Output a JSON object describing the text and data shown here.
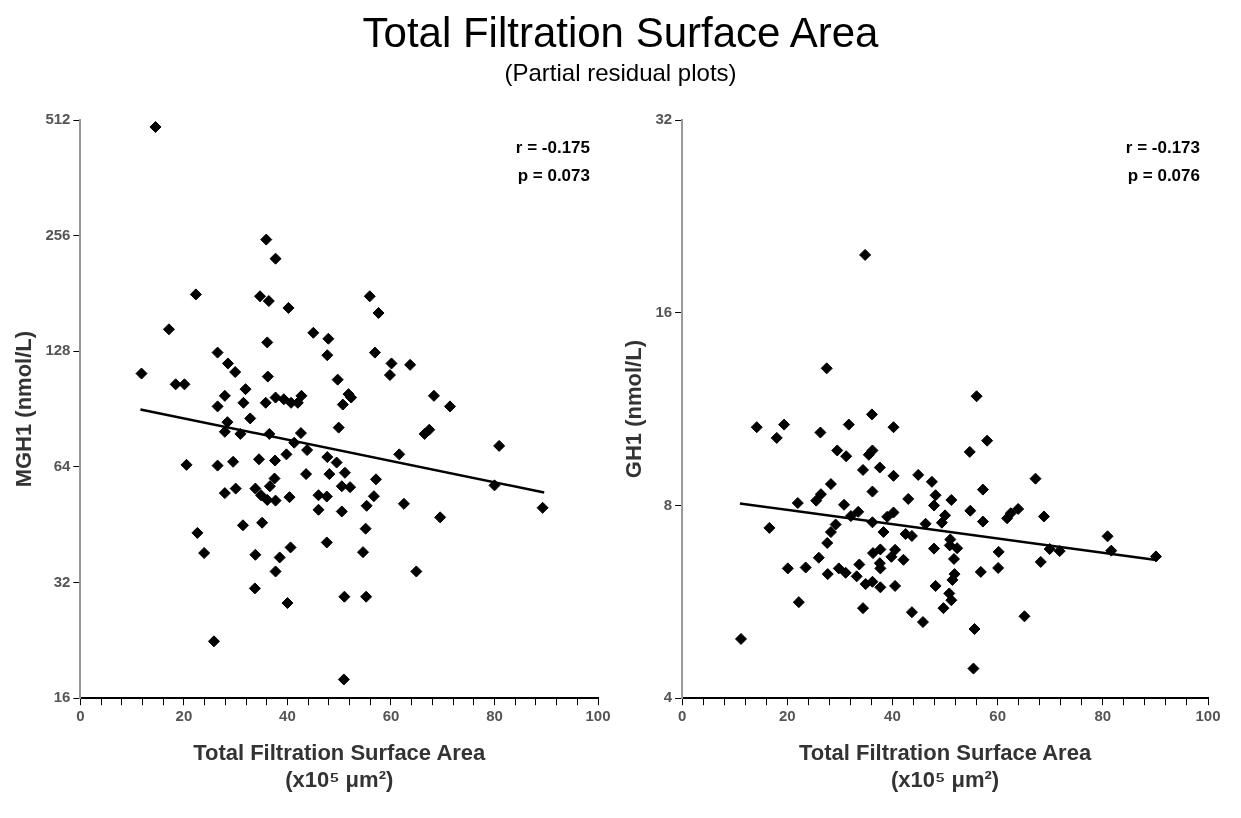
{
  "chart_data": [
    {
      "type": "scatter",
      "title": "Total Filtration Surface Area",
      "subtitle": "(Partial residual plots)",
      "xlabel": "Total Filtration Surface Area\n(x10⁵ μm²)",
      "ylabel": "MGH1 (nmol/L)",
      "annotations": [
        "r = -0.175",
        "p = 0.073"
      ],
      "log": "y",
      "grid": false,
      "legend": false,
      "marker": "diamond",
      "xlim": [
        0,
        100
      ],
      "xticks": [
        0,
        {
          "value": 4,
          "label": null
        },
        {
          "value": 8,
          "label": null
        },
        {
          "value": 12,
          "label": null
        },
        {
          "value": 16,
          "label": null
        },
        20,
        {
          "value": 24,
          "label": null
        },
        {
          "value": 28,
          "label": null
        },
        {
          "value": 32,
          "label": null
        },
        {
          "value": 36,
          "label": null
        },
        40,
        {
          "value": 44,
          "label": null
        },
        {
          "value": 48,
          "label": null
        },
        {
          "value": 52,
          "label": null
        },
        {
          "value": 56,
          "label": null
        },
        60,
        {
          "value": 64,
          "label": null
        },
        {
          "value": 68,
          "label": null
        },
        {
          "value": 72,
          "label": null
        },
        {
          "value": 76,
          "label": null
        },
        80,
        {
          "value": 84,
          "label": null
        },
        {
          "value": 88,
          "label": null
        },
        {
          "value": 92,
          "label": null
        },
        {
          "value": 96,
          "label": null
        },
        100
      ],
      "ylim": [
        16,
        512
      ],
      "yticks": [
        16,
        32,
        64,
        128,
        256,
        512
      ],
      "series": [
        {
          "color": "#000000",
          "x": [
            14.5,
            35.9,
            37.7,
            22.3,
            34.7,
            36.4,
            40.2,
            55.9,
            57.6,
            17.1,
            45,
            47.9,
            36.1,
            47.7,
            26.5,
            56.9,
            60.1,
            63.7,
            59.8,
            28.5,
            29.9,
            11.8,
            18.4,
            20.1,
            36.2,
            49.7,
            51.8,
            52.3,
            68.3,
            71.4,
            27.9,
            31.9,
            31.5,
            26.5,
            37.7,
            39.3,
            40.7,
            42.7,
            42,
            35.8,
            50.7,
            32.8,
            28.4,
            27.9,
            30.9,
            36.5,
            42.6,
            41.3,
            43.8,
            49.9,
            67.4,
            66.5,
            80.9,
            61.6,
            47.7,
            49.5,
            39.8,
            34.5,
            37.6,
            29.5,
            20.5,
            26.5,
            43.6,
            48.1,
            51.1,
            57.1,
            37.5,
            36.6,
            30,
            27.9,
            33.8,
            34.9,
            36.1,
            37.7,
            40.4,
            50.5,
            52.1,
            46,
            47.6,
            56.7,
            55.3,
            62.5,
            46,
            50.5,
            80,
            89.3,
            69.5,
            31.4,
            35.1,
            22.6,
            23.9,
            33.8,
            40.6,
            38.5,
            37.7,
            47.6,
            55.1,
            54.6,
            64.9,
            33.7,
            40,
            51,
            55.2,
            25.8,
            50.9
          ],
          "values": [
            491,
            250,
            223,
            180,
            178,
            173,
            166,
            178,
            161,
            146,
            143,
            138,
            135,
            125,
            127,
            127,
            119,
            118,
            111,
            119,
            113,
            112,
            105,
            105,
            110,
            108,
            99,
            97,
            98,
            92,
            98,
            102,
            94,
            92,
            97,
            96,
            94,
            98,
            94,
            94,
            93,
            85.6,
            83.7,
            79,
            78,
            78,
            78.4,
            74,
            70.8,
            81,
            80,
            78,
            72.6,
            69,
            67.9,
            65.7,
            69,
            67,
            66.5,
            66,
            64.8,
            64.5,
            61.3,
            61.3,
            61.8,
            59.4,
            59.7,
            57,
            56.2,
            54.7,
            56.2,
            54,
            52.5,
            52.3,
            53.4,
            57,
            56.7,
            54,
            53.6,
            53.7,
            50.7,
            51.3,
            49.5,
            49,
            57.3,
            50.1,
            47.3,
            45.1,
            45.8,
            43.1,
            38.2,
            37.8,
            39.5,
            37.2,
            34.2,
            40.7,
            44.2,
            38.4,
            34.2,
            30.9,
            28.3,
            29.4,
            29.4,
            22.5,
            17.9
          ]
        },
        {
          "type": "line",
          "color": "#000000",
          "marker": "none",
          "x": [
            11.6,
            89.6
          ],
          "values": [
            90.3,
            54.9
          ]
        }
      ]
    },
    {
      "type": "scatter",
      "xlabel": "Total Filtration Surface Area\n(x10⁵ μm²)",
      "ylabel": "GH1 (nmol/L)",
      "annotations": [
        "r = -0.173",
        "p = 0.076"
      ],
      "log": "y",
      "grid": false,
      "legend": false,
      "marker": "diamond",
      "xlim": [
        0,
        100
      ],
      "xticks": [
        0,
        {
          "value": 4,
          "label": null
        },
        {
          "value": 8,
          "label": null
        },
        {
          "value": 12,
          "label": null
        },
        {
          "value": 16,
          "label": null
        },
        20,
        {
          "value": 24,
          "label": null
        },
        {
          "value": 28,
          "label": null
        },
        {
          "value": 32,
          "label": null
        },
        {
          "value": 36,
          "label": null
        },
        40,
        {
          "value": 44,
          "label": null
        },
        {
          "value": 48,
          "label": null
        },
        {
          "value": 52,
          "label": null
        },
        {
          "value": 56,
          "label": null
        },
        60,
        {
          "value": 64,
          "label": null
        },
        {
          "value": 68,
          "label": null
        },
        {
          "value": 72,
          "label": null
        },
        {
          "value": 76,
          "label": null
        },
        80,
        {
          "value": 84,
          "label": null
        },
        {
          "value": 88,
          "label": null
        },
        {
          "value": 92,
          "label": null
        },
        {
          "value": 96,
          "label": null
        },
        100
      ],
      "ylim": [
        4,
        32
      ],
      "yticks": [
        4,
        8,
        16,
        32
      ],
      "series": [
        {
          "color": "#000000",
          "x": [
            34.8,
            27.5,
            56,
            14.2,
            19.4,
            18,
            26.3,
            31.7,
            36.1,
            40.2,
            58,
            54.7,
            29.5,
            31.2,
            36.2,
            35.5,
            34.4,
            37.6,
            40.2,
            44.9,
            47.5,
            67.2,
            28.3,
            57.2,
            36.2,
            48.2,
            26.4,
            25.5,
            43,
            51.2,
            22,
            30.8,
            47.9,
            33.5,
            32.1,
            40.2,
            39,
            50,
            49.4,
            54.8,
            57.2,
            62.5,
            63.9,
            61.8,
            68.8,
            36.2,
            46.3,
            29.2,
            28.3,
            38.3,
            42.5,
            43.7,
            16.6,
            51,
            27.6,
            50.9,
            52.3,
            80.9,
            81.6,
            90.1,
            69.9,
            71.8,
            47.9,
            60.2,
            36.3,
            37.7,
            40.5,
            39.8,
            42.1,
            51.7,
            26,
            37.6,
            33.7,
            68.2,
            60.1,
            37.7,
            20.1,
            23.5,
            29.8,
            56.8,
            31.1,
            27.7,
            51.8,
            33.2,
            51.4,
            34.9,
            36.2,
            37.7,
            40.5,
            48.2,
            50.8,
            51.2,
            49.7,
            22.2,
            34.4,
            43.7,
            45.8,
            65.1,
            55.6,
            11.2,
            55.4
          ],
          "values": [
            19.7,
            13.1,
            11.85,
            10.6,
            10.7,
            10.2,
            10.4,
            10.7,
            11.1,
            10.6,
            10.1,
            9.7,
            9.75,
            9.55,
            9.75,
            9.6,
            9.09,
            9.17,
            8.9,
            8.93,
            8.71,
            8.81,
            8.64,
            8.47,
            8.41,
            8.3,
            8.33,
            8.14,
            8.19,
            8.16,
            8.07,
            8.02,
            8,
            7.82,
            7.7,
            7.8,
            7.68,
            7.72,
            7.52,
            7.85,
            7.55,
            7.78,
            7.9,
            7.64,
            7.69,
            7.53,
            7.49,
            7.47,
            7.27,
            7.27,
            7.22,
            7.17,
            7.38,
            7.08,
            6.99,
            6.93,
            6.86,
            7.16,
            6.8,
            6.66,
            6.84,
            6.79,
            6.85,
            6.77,
            6.74,
            6.83,
            6.82,
            6.65,
            6.58,
            6.6,
            6.63,
            6.5,
            6.47,
            6.53,
            6.39,
            6.38,
            6.38,
            6.4,
            6.38,
            6.3,
            6.28,
            6.25,
            6.25,
            6.2,
            6.12,
            6.03,
            6.08,
            5.96,
            5.99,
            5.99,
            5.83,
            5.69,
            5.53,
            5.65,
            5.53,
            5.45,
            5.26,
            5.37,
            5.13,
            4.95,
            4.45
          ]
        },
        {
          "type": "line",
          "color": "#000000",
          "marker": "none",
          "x": [
            11,
            89.8
          ],
          "values": [
            8.06,
            6.58
          ]
        }
      ]
    }
  ]
}
